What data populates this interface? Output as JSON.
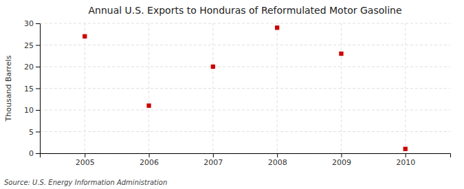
{
  "chart_data": {
    "type": "scatter",
    "title": "Annual U.S. Exports to Honduras of Reformulated Motor Gasoline",
    "ylabel": "Thousand Barrels",
    "annotations": [
      "Source: U.S. Energy Information Administration"
    ],
    "x": [
      2005,
      2006,
      2007,
      2008,
      2009,
      2010
    ],
    "values": [
      27,
      11,
      20,
      29,
      23,
      1
    ],
    "color": "#cc0000",
    "marker": "square",
    "xlim": [
      2004.3,
      2010.7
    ],
    "xticks": [
      2005,
      2006,
      2007,
      2008,
      2009,
      2010
    ],
    "ylim": [
      0,
      30
    ],
    "yticks": [
      0,
      5,
      10,
      15,
      20,
      25,
      30
    ],
    "grid": true
  }
}
